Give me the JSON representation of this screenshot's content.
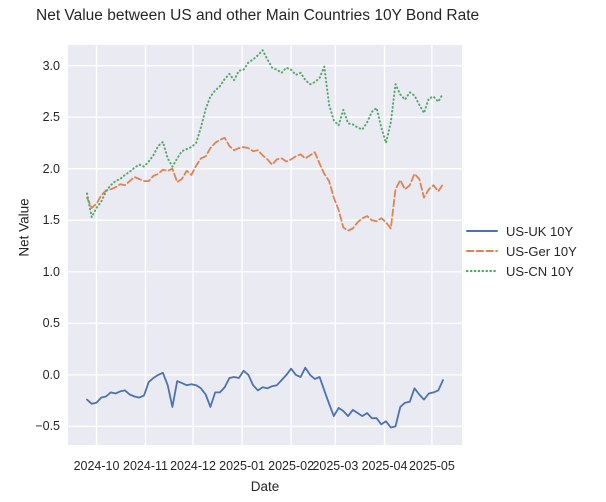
{
  "figure": {
    "background": "#ffffff",
    "plot_background": "#eaeaf2",
    "grid_color": "#ffffff",
    "text_color": "#262626"
  },
  "chart_data": {
    "type": "line",
    "title": "Net Value between US and other Main Countries 10Y Bond Rate",
    "xlabel": "Date",
    "ylabel": "Net Value",
    "grid": true,
    "legend_position": "center right, outside plot",
    "xlim": [
      "2024-09-13",
      "2025-05-20"
    ],
    "ylim": [
      -0.68,
      3.2
    ],
    "x_ticks": [
      {
        "label": "2024-10",
        "date": "2024-10-01"
      },
      {
        "label": "2024-11",
        "date": "2024-11-01"
      },
      {
        "label": "2024-12",
        "date": "2024-12-01"
      },
      {
        "label": "2025-01",
        "date": "2025-01-01"
      },
      {
        "label": "2025-02",
        "date": "2025-02-01"
      },
      {
        "label": "2025-03",
        "date": "2025-03-01"
      },
      {
        "label": "2025-04",
        "date": "2025-04-01"
      },
      {
        "label": "2025-05",
        "date": "2025-05-01"
      }
    ],
    "y_ticks": [
      {
        "label": "3.0",
        "value": 3.0
      },
      {
        "label": "2.5",
        "value": 2.5
      },
      {
        "label": "2.0",
        "value": 2.0
      },
      {
        "label": "1.5",
        "value": 1.5
      },
      {
        "label": "1.0",
        "value": 1.0
      },
      {
        "label": "0.5",
        "value": 0.5
      },
      {
        "label": "0.0",
        "value": 0.0
      },
      {
        "label": "−0.5",
        "value": -0.5
      }
    ],
    "x": [
      "2024-09-25",
      "2024-09-28",
      "2024-10-01",
      "2024-10-04",
      "2024-10-07",
      "2024-10-10",
      "2024-10-13",
      "2024-10-16",
      "2024-10-19",
      "2024-10-22",
      "2024-10-25",
      "2024-10-28",
      "2024-10-31",
      "2024-11-03",
      "2024-11-06",
      "2024-11-09",
      "2024-11-12",
      "2024-11-15",
      "2024-11-18",
      "2024-11-21",
      "2024-11-24",
      "2024-11-27",
      "2024-11-30",
      "2024-12-03",
      "2024-12-06",
      "2024-12-09",
      "2024-12-12",
      "2024-12-15",
      "2024-12-18",
      "2024-12-21",
      "2024-12-24",
      "2024-12-27",
      "2024-12-30",
      "2025-01-02",
      "2025-01-05",
      "2025-01-08",
      "2025-01-11",
      "2025-01-14",
      "2025-01-17",
      "2025-01-20",
      "2025-01-23",
      "2025-01-26",
      "2025-01-29",
      "2025-02-01",
      "2025-02-04",
      "2025-02-07",
      "2025-02-10",
      "2025-02-13",
      "2025-02-16",
      "2025-02-19",
      "2025-02-22",
      "2025-02-25",
      "2025-02-28",
      "2025-03-03",
      "2025-03-06",
      "2025-03-09",
      "2025-03-12",
      "2025-03-15",
      "2025-03-18",
      "2025-03-21",
      "2025-03-24",
      "2025-03-27",
      "2025-03-30",
      "2025-04-02",
      "2025-04-05",
      "2025-04-08",
      "2025-04-11",
      "2025-04-14",
      "2025-04-17",
      "2025-04-20",
      "2025-04-23",
      "2025-04-26",
      "2025-04-29",
      "2025-05-02",
      "2025-05-05",
      "2025-05-08"
    ],
    "series": [
      {
        "name": "US-UK 10Y",
        "color": "#4c72b0",
        "style": "solid",
        "values": [
          -0.24,
          -0.28,
          -0.27,
          -0.22,
          -0.21,
          -0.17,
          -0.18,
          -0.16,
          -0.15,
          -0.19,
          -0.21,
          -0.22,
          -0.2,
          -0.07,
          -0.03,
          0.0,
          0.02,
          -0.1,
          -0.31,
          -0.06,
          -0.08,
          -0.1,
          -0.09,
          -0.1,
          -0.13,
          -0.19,
          -0.31,
          -0.17,
          -0.17,
          -0.12,
          -0.03,
          -0.02,
          -0.03,
          0.04,
          0.0,
          -0.1,
          -0.15,
          -0.12,
          -0.13,
          -0.11,
          -0.1,
          -0.05,
          0.0,
          0.06,
          0.0,
          -0.02,
          0.07,
          0.0,
          -0.04,
          -0.02,
          -0.15,
          -0.28,
          -0.4,
          -0.32,
          -0.35,
          -0.4,
          -0.34,
          -0.37,
          -0.4,
          -0.37,
          -0.42,
          -0.42,
          -0.48,
          -0.45,
          -0.51,
          -0.5,
          -0.31,
          -0.27,
          -0.26,
          -0.13,
          -0.19,
          -0.24,
          -0.18,
          -0.17,
          -0.15,
          -0.05
        ]
      },
      {
        "name": "US-Ger 10Y",
        "color": "#dd8452",
        "style": "dashed",
        "values": [
          1.72,
          1.62,
          1.66,
          1.74,
          1.79,
          1.8,
          1.82,
          1.85,
          1.84,
          1.88,
          1.92,
          1.9,
          1.88,
          1.88,
          1.93,
          1.95,
          1.99,
          1.98,
          2.0,
          1.87,
          1.9,
          1.98,
          1.94,
          2.03,
          2.1,
          2.12,
          2.2,
          2.25,
          2.28,
          2.3,
          2.22,
          2.18,
          2.2,
          2.21,
          2.2,
          2.17,
          2.18,
          2.13,
          2.09,
          2.04,
          2.09,
          2.1,
          2.07,
          2.09,
          2.12,
          2.14,
          2.1,
          2.13,
          2.16,
          2.05,
          1.95,
          1.88,
          1.72,
          1.6,
          1.43,
          1.4,
          1.42,
          1.48,
          1.52,
          1.54,
          1.5,
          1.49,
          1.52,
          1.48,
          1.42,
          1.8,
          1.89,
          1.8,
          1.84,
          1.95,
          1.9,
          1.72,
          1.8,
          1.84,
          1.78,
          1.85
        ]
      },
      {
        "name": "US-CN 10Y",
        "color": "#55a868",
        "style": "dotted",
        "values": [
          1.76,
          1.53,
          1.62,
          1.68,
          1.78,
          1.84,
          1.88,
          1.9,
          1.94,
          1.97,
          2.01,
          2.04,
          2.02,
          2.07,
          2.13,
          2.22,
          2.26,
          2.1,
          2.02,
          2.1,
          2.17,
          2.19,
          2.21,
          2.25,
          2.4,
          2.58,
          2.7,
          2.76,
          2.8,
          2.87,
          2.92,
          2.86,
          2.95,
          2.96,
          3.03,
          3.06,
          3.1,
          3.15,
          3.06,
          2.98,
          2.96,
          2.93,
          2.98,
          2.96,
          2.91,
          2.93,
          2.86,
          2.82,
          2.84,
          2.88,
          2.99,
          2.62,
          2.47,
          2.42,
          2.57,
          2.44,
          2.43,
          2.4,
          2.38,
          2.45,
          2.55,
          2.59,
          2.4,
          2.25,
          2.45,
          2.82,
          2.72,
          2.67,
          2.74,
          2.71,
          2.62,
          2.54,
          2.68,
          2.7,
          2.65,
          2.73
        ]
      }
    ]
  }
}
